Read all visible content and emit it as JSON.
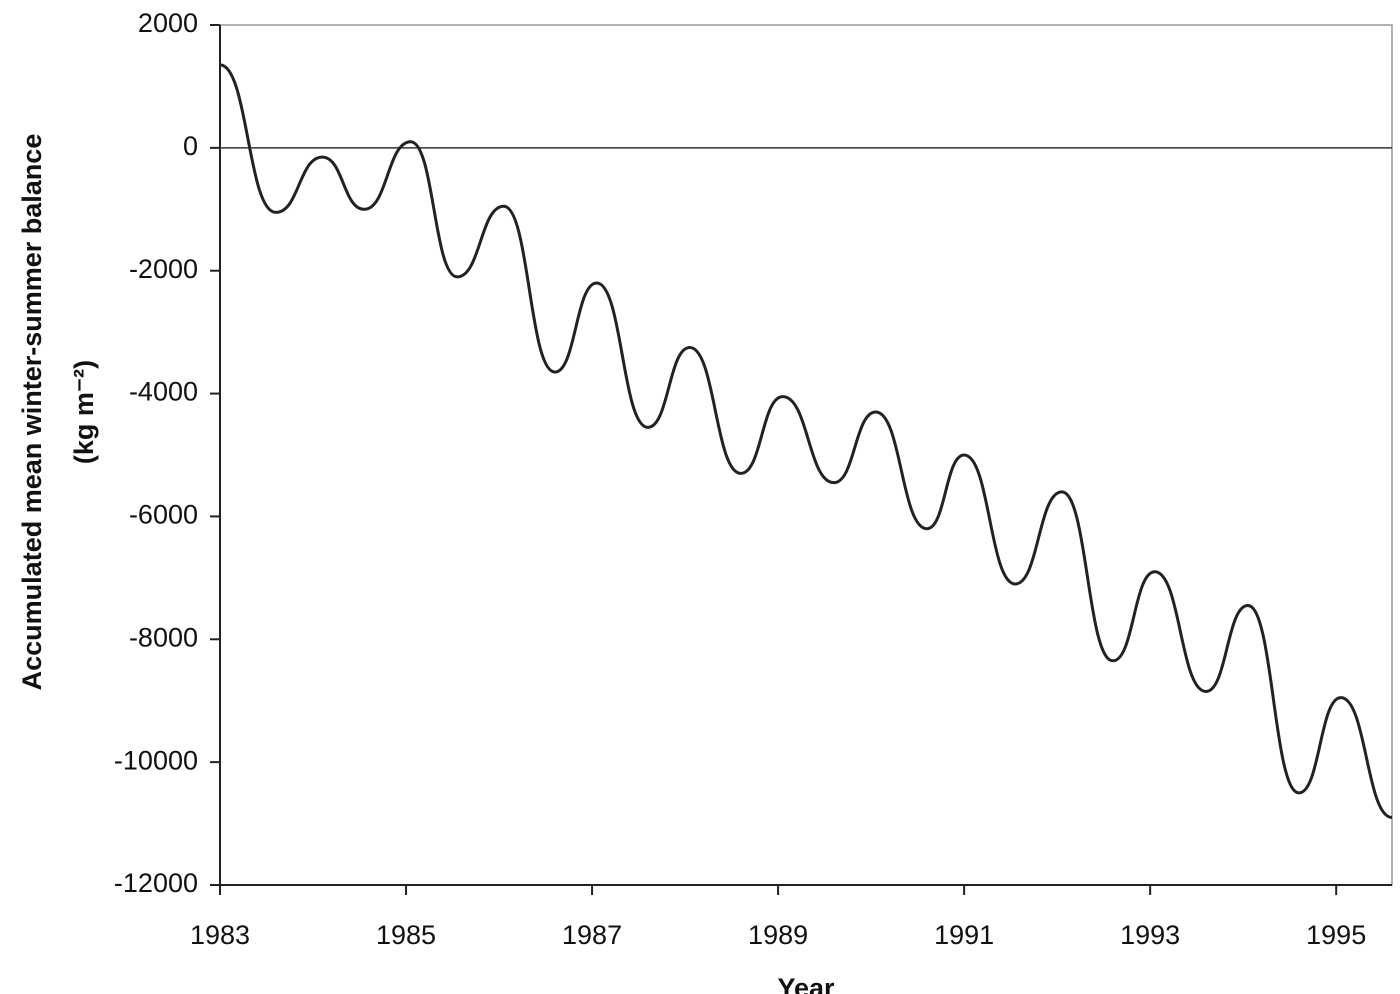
{
  "chart_data": {
    "type": "line",
    "ylabel_lines": [
      "Accumulated mean winter-summer balance",
      "(kg m⁻²)"
    ],
    "xlabel": "Year",
    "x": [
      1983.0,
      1983.6,
      1984.1,
      1984.55,
      1985.05,
      1985.55,
      1986.05,
      1986.6,
      1987.05,
      1987.6,
      1988.05,
      1988.6,
      1989.05,
      1989.6,
      1990.05,
      1990.6,
      1991.0,
      1991.55,
      1992.05,
      1992.6,
      1993.05,
      1993.6,
      1994.05,
      1994.6,
      1995.05,
      1995.6
    ],
    "series": [
      {
        "color": "#222222",
        "values": [
          1350,
          -1050,
          -150,
          -1000,
          100,
          -2100,
          -950,
          -3650,
          -2200,
          -4550,
          -3250,
          -5300,
          -4050,
          -5450,
          -4300,
          -6200,
          -5000,
          -7100,
          -5600,
          -8350,
          -6900,
          -8850,
          -7450,
          -10500,
          -8950,
          -10900
        ]
      }
    ],
    "xlim": [
      1983,
      1995.6
    ],
    "xticks": [
      1983,
      1985,
      1987,
      1989,
      1991,
      1993,
      1995
    ],
    "ylim": [
      -12000,
      2000
    ],
    "yticks": [
      -12000,
      -10000,
      -8000,
      -6000,
      -4000,
      -2000,
      0,
      2000
    ],
    "zero_line": true,
    "grid": false
  }
}
